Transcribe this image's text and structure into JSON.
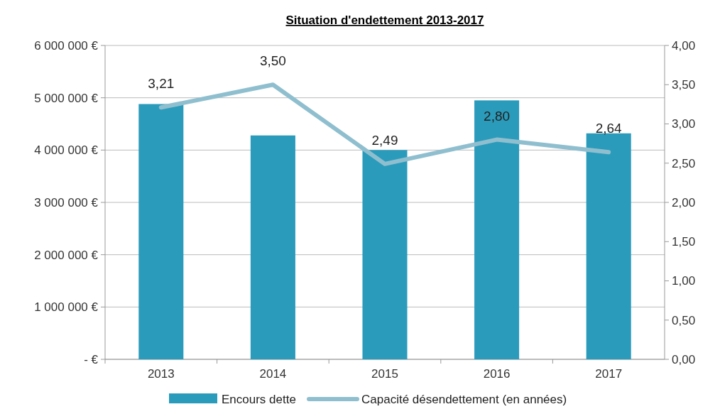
{
  "chart_data": {
    "type": "bar",
    "title": "Situation d'endettement 2013-2017",
    "categories": [
      "2013",
      "2014",
      "2015",
      "2016",
      "2017"
    ],
    "series": [
      {
        "name": "Encours dette",
        "color": "#2b9bbb",
        "values": [
          4880000,
          4280000,
          4000000,
          4950000,
          4320000
        ]
      },
      {
        "name": "Capacité désendettement (en années)",
        "type": "line",
        "axis": "y2",
        "color": "#8fbfcf",
        "values": [
          3.21,
          3.5,
          2.49,
          2.8,
          2.64
        ],
        "value_labels": [
          "3,21",
          "3,50",
          "2,49",
          "2,80",
          "2,64"
        ]
      }
    ],
    "ylim": [
      0,
      6000000
    ],
    "yticks": [
      {
        "value": 0,
        "label": "-  €"
      },
      {
        "value": 1000000,
        "label": "1 000 000 €"
      },
      {
        "value": 2000000,
        "label": "2 000 000 €"
      },
      {
        "value": 3000000,
        "label": "3 000 000 €"
      },
      {
        "value": 4000000,
        "label": "4 000 000 €"
      },
      {
        "value": 5000000,
        "label": "5 000 000 €"
      },
      {
        "value": 6000000,
        "label": "6 000 000 €"
      }
    ],
    "y2lim": [
      0,
      4
    ],
    "y2ticks": [
      {
        "value": 0,
        "label": "0,00"
      },
      {
        "value": 0.5,
        "label": "0,50"
      },
      {
        "value": 1,
        "label": "1,00"
      },
      {
        "value": 1.5,
        "label": "1,50"
      },
      {
        "value": 2,
        "label": "2,00"
      },
      {
        "value": 2.5,
        "label": "2,50"
      },
      {
        "value": 3,
        "label": "3,00"
      },
      {
        "value": 3.5,
        "label": "3,50"
      },
      {
        "value": 4,
        "label": "4,00"
      }
    ],
    "grid": "y",
    "legend": "bottom"
  }
}
